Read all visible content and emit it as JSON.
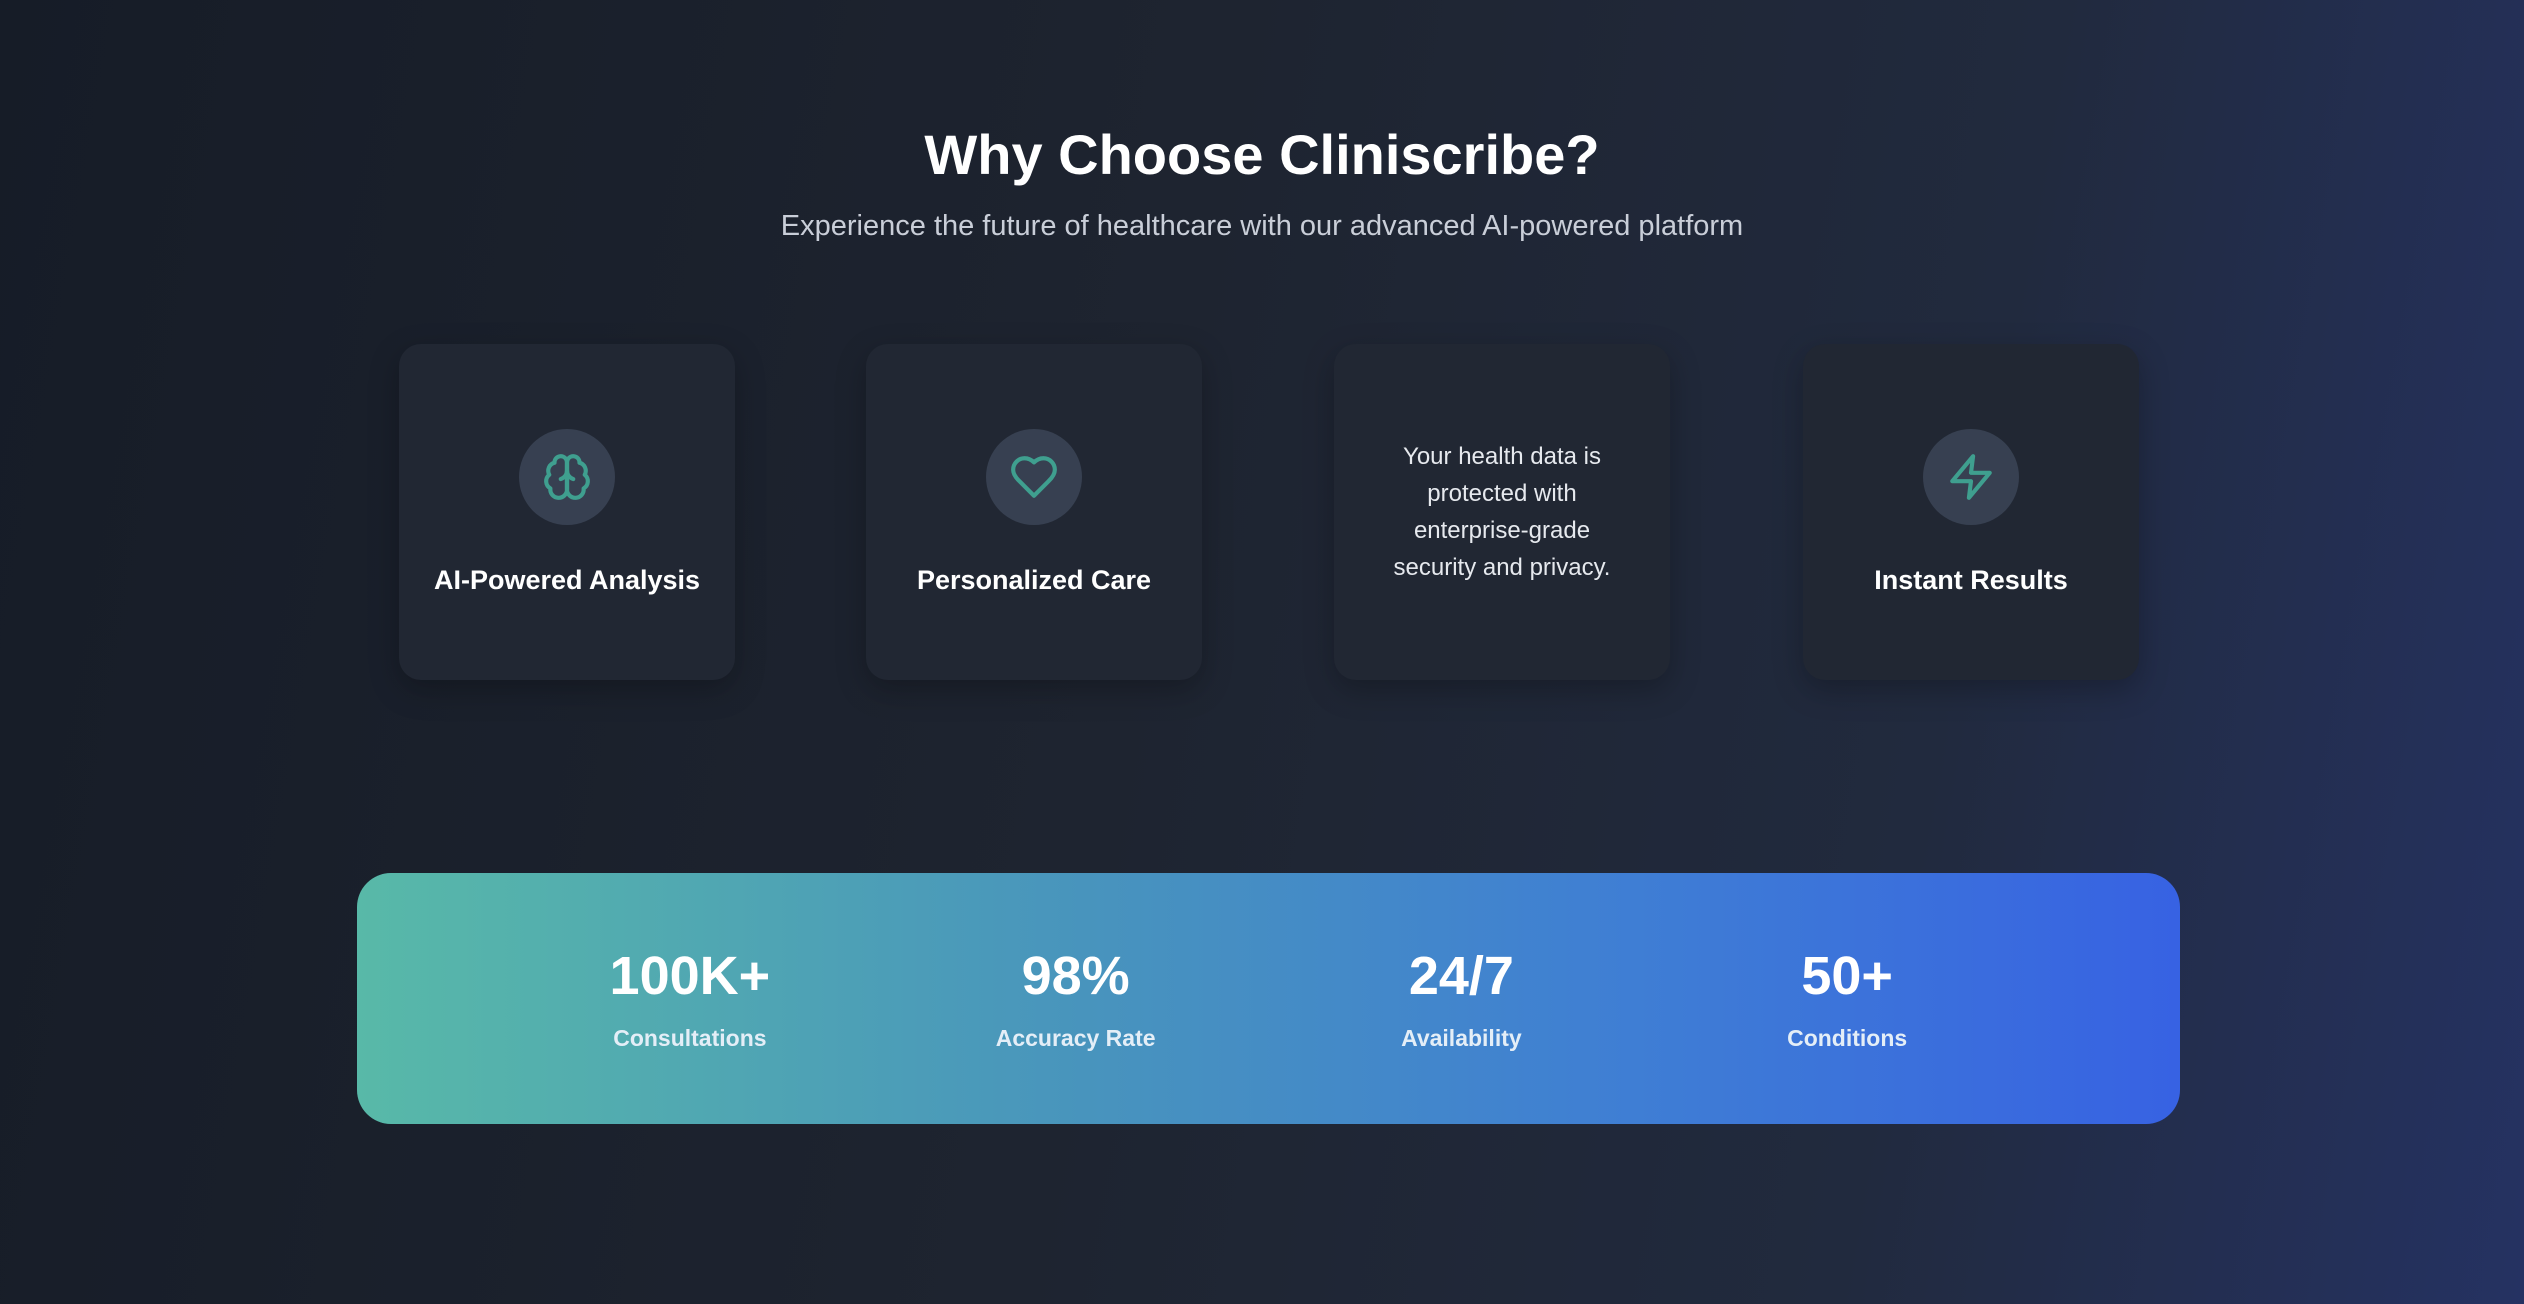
{
  "header": {
    "title": "Why Choose Cliniscribe?",
    "subtitle": "Experience the future of healthcare with our advanced AI-powered platform"
  },
  "features": [
    {
      "icon": "brain-icon",
      "title": "AI-Powered Analysis"
    },
    {
      "icon": "heart-icon",
      "title": "Personalized Care"
    },
    {
      "description": "Your health data is protected with enterprise-grade security and privacy."
    },
    {
      "icon": "lightning-icon",
      "title": "Instant Results"
    }
  ],
  "stats": [
    {
      "value": "100K+",
      "label": "Consultations"
    },
    {
      "value": "98%",
      "label": "Accuracy Rate"
    },
    {
      "value": "24/7",
      "label": "Availability"
    },
    {
      "value": "50+",
      "label": "Conditions"
    }
  ],
  "colors": {
    "accent": "#3f9f8f",
    "gradient_start": "#58b9a8",
    "gradient_end": "#3762e3"
  }
}
